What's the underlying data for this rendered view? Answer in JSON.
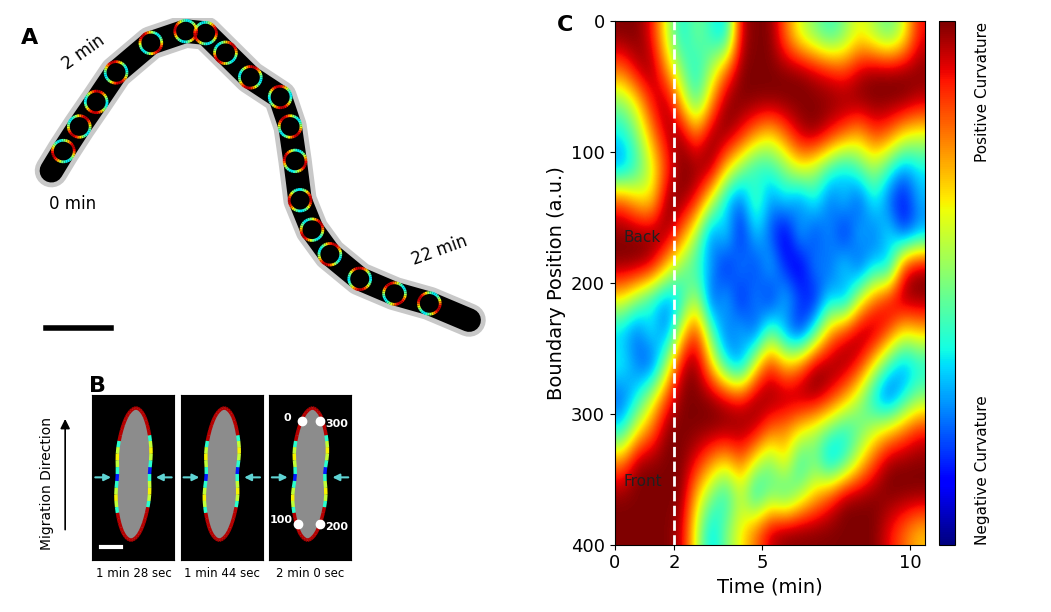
{
  "panel_labels": [
    "A",
    "B",
    "C"
  ],
  "panel_A": {
    "time_labels": [
      "0 min",
      "2 min",
      "22 min"
    ]
  },
  "panel_B": {
    "direction_label": "Migration Direction",
    "frames": [
      "1 min 28 sec",
      "1 min 44 sec",
      "2 min 0 sec"
    ],
    "boundary_marks": [
      0,
      300,
      100,
      200
    ]
  },
  "chart_data": {
    "type": "heatmap",
    "xlabel": "Time (min)",
    "ylabel": "Boundary Position (a.u.)",
    "xlim": [
      0,
      10.5
    ],
    "xticks": [
      0,
      2,
      5,
      10
    ],
    "ylim": [
      400,
      0
    ],
    "yticks": [
      0,
      100,
      200,
      300,
      400
    ],
    "vlines": [
      2
    ],
    "annotations": [
      {
        "text": "Back",
        "x": 0.3,
        "y": 165
      },
      {
        "text": "Front",
        "x": 0.3,
        "y": 352
      }
    ],
    "colorbar": {
      "range": [
        -1,
        1
      ],
      "top_label": "Positive Curvature",
      "bottom_label": "Negative Curvature"
    },
    "cells": [
      [
        1,
        1,
        0.8,
        0.2,
        -0.3,
        0,
        -0.2,
        -0.4,
        0.9,
        1,
        1,
        0.6,
        0.2,
        0,
        -0.2,
        0,
        0.3,
        0.1,
        -0.1,
        0.2,
        0.8
      ],
      [
        0.6,
        0.9,
        1,
        0.5,
        0,
        -0.3,
        0.1,
        0.6,
        1,
        1,
        1,
        1,
        1,
        0.9,
        0.8,
        0.7,
        0.9,
        1,
        1,
        1,
        1
      ],
      [
        0,
        0.3,
        0.8,
        1,
        0.4,
        -0.2,
        0.5,
        1,
        1,
        1,
        1,
        1,
        1,
        1,
        1,
        1,
        1,
        1,
        1,
        1,
        0.9
      ],
      [
        -0.3,
        0,
        0.5,
        0.9,
        1,
        0.6,
        1,
        1,
        0.8,
        0.5,
        0.3,
        0.6,
        0.9,
        1,
        0.8,
        0.6,
        0.4,
        0.7,
        0.6,
        0.3,
        0.2
      ],
      [
        -0.5,
        -0.2,
        0.2,
        0.7,
        1,
        1,
        1,
        0.4,
        0,
        -0.3,
        -0.2,
        0,
        0.3,
        0.1,
        -0.2,
        -0.4,
        -0.1,
        0.1,
        -0.2,
        -0.5,
        -0.3
      ],
      [
        0.7,
        0.4,
        0.3,
        1,
        1,
        0.8,
        0.2,
        -0.4,
        -0.6,
        0,
        -0.5,
        -0.3,
        -0.6,
        -0.2,
        -0.6,
        -0.3,
        -0.7,
        -0.2,
        -0.6,
        -0.8,
        -0.4
      ],
      [
        1,
        1,
        1,
        1,
        0.6,
        0.1,
        -0.6,
        -0.2,
        -0.8,
        -0.3,
        -0.6,
        -0.9,
        -0.3,
        -0.7,
        -0.4,
        -0.8,
        -0.3,
        -0.6,
        -0.2,
        -0.7,
        -0.5
      ],
      [
        1,
        1,
        0.9,
        0.4,
        0,
        -0.2,
        -0.4,
        -0.8,
        -0.4,
        -0.7,
        -0.3,
        -0.7,
        -0.9,
        -0.4,
        -0.6,
        -0.2,
        -0.7,
        -0.3,
        -0.5,
        0.8,
        1
      ],
      [
        0.3,
        0,
        -0.3,
        -0.5,
        -0.3,
        0.2,
        -0.7,
        -0.3,
        -0.8,
        -0.4,
        -0.8,
        -0.3,
        -0.6,
        -0.8,
        -0.3,
        -0.6,
        0.2,
        0.6,
        0.9,
        1,
        1
      ],
      [
        -0.4,
        -0.6,
        -0.2,
        -0.6,
        0.3,
        0.8,
        -0.1,
        -0.6,
        -0.3,
        -0.7,
        0,
        -0.5,
        -0.8,
        -0.2,
        0.5,
        0.8,
        1,
        1,
        0.7,
        0.3,
        0.4
      ],
      [
        -0.2,
        -0.5,
        -0.7,
        0.1,
        0.9,
        1,
        0.4,
        -0.3,
        -0.6,
        0.3,
        0.8,
        0.4,
        0.6,
        1,
        1,
        1,
        0.8,
        0.3,
        -0.2,
        -0.5,
        -0.3
      ],
      [
        -0.6,
        -0.3,
        0.2,
        0.7,
        1,
        1,
        1,
        0.9,
        0.8,
        1,
        1,
        1,
        1,
        1,
        0.8,
        0.5,
        0.1,
        -0.4,
        -0.7,
        -0.3,
        0
      ],
      [
        -0.3,
        0.3,
        0.6,
        1,
        1,
        1,
        1,
        1,
        1,
        0.9,
        0.6,
        0.5,
        0.3,
        0.1,
        -0.1,
        -0.3,
        -0.1,
        0.2,
        0.4,
        0.6,
        0.8
      ],
      [
        0.6,
        1,
        1,
        1,
        1,
        0.8,
        0.5,
        0.3,
        0.6,
        0.2,
        -0.1,
        0.4,
        -0.3,
        0,
        -0.5,
        -0.2,
        0.3,
        0.7,
        1,
        1,
        1
      ],
      [
        1,
        1,
        1,
        1,
        1,
        0.4,
        0,
        -0.3,
        0.2,
        -0.4,
        0,
        -0.3,
        0.1,
        0.4,
        0.7,
        1,
        1,
        1,
        1,
        1,
        1
      ],
      [
        1,
        1,
        1,
        1,
        0.9,
        0.2,
        -0.4,
        0,
        0.3,
        0.6,
        0.9,
        1,
        1,
        1,
        1,
        1,
        1,
        1,
        0.8,
        0.6,
        0.4
      ]
    ]
  }
}
